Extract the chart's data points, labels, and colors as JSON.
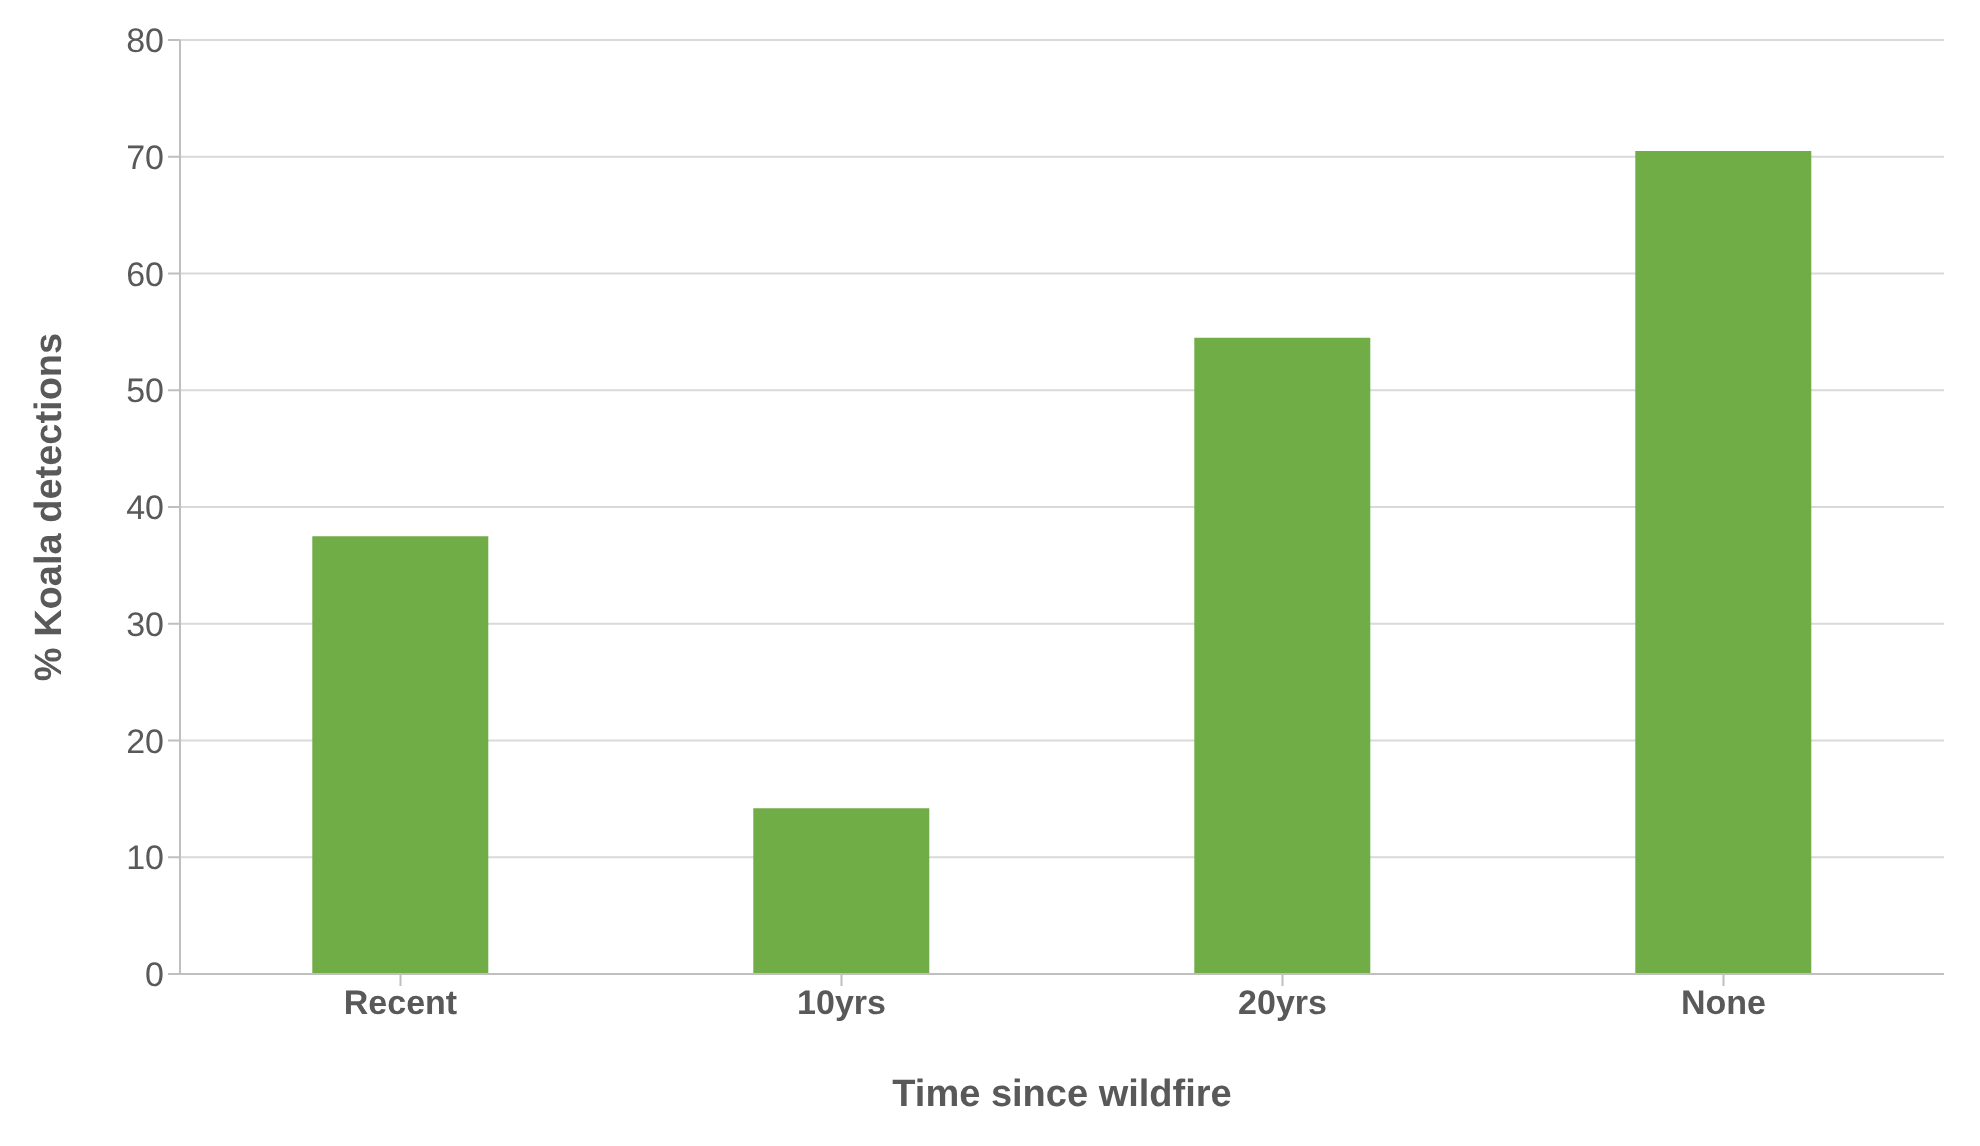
{
  "chart_data": {
    "type": "bar",
    "xlabel": "Time since wildfire",
    "ylabel": "% Koala detections",
    "categories": [
      "Recent",
      "10yrs",
      "20yrs",
      "None"
    ],
    "values": [
      37.5,
      14.2,
      54.5,
      70.5
    ],
    "color": "#70ad47",
    "ylim": [
      0,
      80
    ],
    "yticks": [
      0,
      10,
      20,
      30,
      40,
      50,
      60,
      70,
      80
    ],
    "grid": "y"
  }
}
